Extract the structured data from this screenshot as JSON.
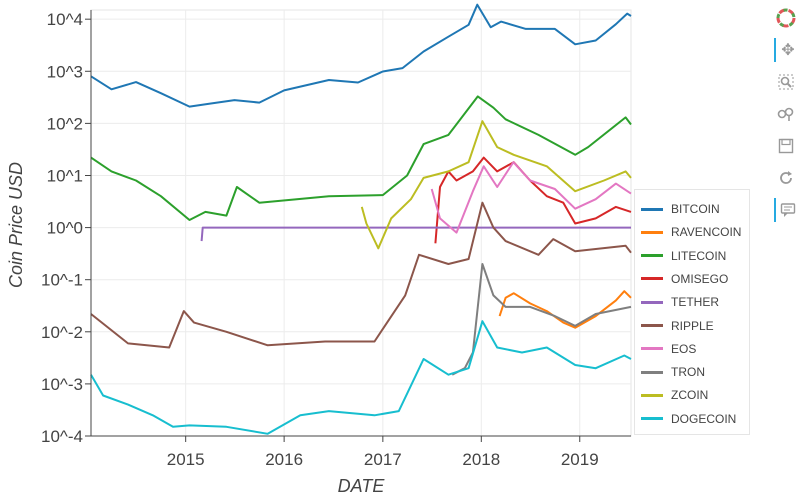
{
  "chart_data": {
    "type": "line",
    "title": "",
    "xlabel": "DATE",
    "ylabel": "Coin Price USD",
    "yscale": "log",
    "xlim": [
      "2014-01-15",
      "2019-07-10"
    ],
    "ylim": [
      0.0001,
      15000
    ],
    "x_ticks": [
      "2015",
      "2016",
      "2017",
      "2018",
      "2019"
    ],
    "y_ticks": [
      "10^-4",
      "10^-3",
      "10^-2",
      "10^-1",
      "10^0",
      "10^1",
      "10^2",
      "10^3",
      "10^4"
    ],
    "grid": true,
    "legend_position": "right",
    "series": [
      {
        "name": "BITCOIN",
        "color": "#1f77b4",
        "points": [
          [
            "2014-01-15",
            800
          ],
          [
            "2014-04-01",
            450
          ],
          [
            "2014-07-01",
            620
          ],
          [
            "2014-10-01",
            380
          ],
          [
            "2015-01-15",
            210
          ],
          [
            "2015-04-01",
            240
          ],
          [
            "2015-07-01",
            280
          ],
          [
            "2015-10-01",
            250
          ],
          [
            "2016-01-01",
            430
          ],
          [
            "2016-06-15",
            680
          ],
          [
            "2016-10-01",
            610
          ],
          [
            "2017-01-01",
            990
          ],
          [
            "2017-03-15",
            1150
          ],
          [
            "2017-06-01",
            2400
          ],
          [
            "2017-09-01",
            4600
          ],
          [
            "2017-11-15",
            7800
          ],
          [
            "2017-12-17",
            19000
          ],
          [
            "2018-02-05",
            7000
          ],
          [
            "2018-03-15",
            9000
          ],
          [
            "2018-06-15",
            6500
          ],
          [
            "2018-10-01",
            6500
          ],
          [
            "2018-12-15",
            3300
          ],
          [
            "2019-03-01",
            3900
          ],
          [
            "2019-05-15",
            8000
          ],
          [
            "2019-06-26",
            12800
          ],
          [
            "2019-07-10",
            11500
          ]
        ]
      },
      {
        "name": "RAVENCOIN",
        "color": "#ff7f0e",
        "points": [
          [
            "2018-03-10",
            0.02
          ],
          [
            "2018-04-01",
            0.045
          ],
          [
            "2018-05-01",
            0.055
          ],
          [
            "2018-07-01",
            0.035
          ],
          [
            "2018-09-01",
            0.025
          ],
          [
            "2018-11-01",
            0.015
          ],
          [
            "2018-12-15",
            0.012
          ],
          [
            "2019-03-01",
            0.02
          ],
          [
            "2019-05-15",
            0.04
          ],
          [
            "2019-06-15",
            0.06
          ],
          [
            "2019-07-10",
            0.045
          ]
        ]
      },
      {
        "name": "LITECOIN",
        "color": "#2ca02c",
        "points": [
          [
            "2014-01-15",
            22
          ],
          [
            "2014-04-01",
            12
          ],
          [
            "2014-07-01",
            8
          ],
          [
            "2014-10-01",
            4
          ],
          [
            "2015-01-15",
            1.4
          ],
          [
            "2015-03-15",
            2
          ],
          [
            "2015-06-01",
            1.7
          ],
          [
            "2015-07-10",
            6
          ],
          [
            "2015-10-01",
            3
          ],
          [
            "2016-06-15",
            4
          ],
          [
            "2017-01-01",
            4.2
          ],
          [
            "2017-04-01",
            10
          ],
          [
            "2017-06-01",
            40
          ],
          [
            "2017-09-01",
            60
          ],
          [
            "2017-12-19",
            330
          ],
          [
            "2018-02-15",
            200
          ],
          [
            "2018-04-01",
            120
          ],
          [
            "2018-08-01",
            60
          ],
          [
            "2018-12-15",
            25
          ],
          [
            "2019-02-01",
            35
          ],
          [
            "2019-06-20",
            130
          ],
          [
            "2019-07-10",
            95
          ]
        ]
      },
      {
        "name": "OMISEGO",
        "color": "#d62728",
        "points": [
          [
            "2017-07-15",
            0.5
          ],
          [
            "2017-08-01",
            6
          ],
          [
            "2017-09-01",
            12
          ],
          [
            "2017-10-01",
            8
          ],
          [
            "2017-12-01",
            12
          ],
          [
            "2018-01-10",
            22
          ],
          [
            "2018-03-01",
            12
          ],
          [
            "2018-05-01",
            18
          ],
          [
            "2018-07-01",
            8
          ],
          [
            "2018-09-01",
            4
          ],
          [
            "2018-11-01",
            3
          ],
          [
            "2018-12-15",
            1.2
          ],
          [
            "2019-03-01",
            1.5
          ],
          [
            "2019-05-15",
            2.5
          ],
          [
            "2019-07-10",
            2
          ]
        ]
      },
      {
        "name": "TETHER",
        "color": "#9467bd",
        "points": [
          [
            "2015-03-01",
            0.55
          ],
          [
            "2015-03-05",
            1.0
          ],
          [
            "2017-01-01",
            1.0
          ],
          [
            "2019-07-10",
            1.0
          ]
        ]
      },
      {
        "name": "RIPPLE",
        "color": "#8c564b",
        "points": [
          [
            "2014-01-15",
            0.022
          ],
          [
            "2014-06-01",
            0.006
          ],
          [
            "2014-11-01",
            0.005
          ],
          [
            "2014-12-25",
            0.025
          ],
          [
            "2015-02-01",
            0.015
          ],
          [
            "2015-06-01",
            0.01
          ],
          [
            "2015-11-01",
            0.0055
          ],
          [
            "2016-06-01",
            0.0065
          ],
          [
            "2016-12-01",
            0.0065
          ],
          [
            "2017-03-25",
            0.05
          ],
          [
            "2017-05-15",
            0.3
          ],
          [
            "2017-09-01",
            0.2
          ],
          [
            "2017-11-15",
            0.25
          ],
          [
            "2018-01-05",
            3.0
          ],
          [
            "2018-02-15",
            1.0
          ],
          [
            "2018-04-01",
            0.55
          ],
          [
            "2018-08-01",
            0.3
          ],
          [
            "2018-09-25",
            0.6
          ],
          [
            "2018-12-15",
            0.35
          ],
          [
            "2019-06-20",
            0.45
          ],
          [
            "2019-07-10",
            0.33
          ]
        ]
      },
      {
        "name": "EOS",
        "color": "#e377c2",
        "points": [
          [
            "2017-07-01",
            5.5
          ],
          [
            "2017-08-01",
            1.5
          ],
          [
            "2017-10-01",
            0.8
          ],
          [
            "2017-12-01",
            5
          ],
          [
            "2018-01-10",
            15
          ],
          [
            "2018-03-01",
            6
          ],
          [
            "2018-04-30",
            18
          ],
          [
            "2018-07-01",
            8
          ],
          [
            "2018-10-01",
            5.5
          ],
          [
            "2018-12-15",
            2.3
          ],
          [
            "2019-03-01",
            3.5
          ],
          [
            "2019-05-15",
            7
          ],
          [
            "2019-07-10",
            4.5
          ]
        ]
      },
      {
        "name": "TRON",
        "color": "#7f7f7f",
        "points": [
          [
            "2017-09-15",
            0.0015
          ],
          [
            "2017-11-01",
            0.002
          ],
          [
            "2017-12-01",
            0.004
          ],
          [
            "2018-01-05",
            0.2
          ],
          [
            "2018-02-15",
            0.05
          ],
          [
            "2018-04-01",
            0.03
          ],
          [
            "2018-07-01",
            0.03
          ],
          [
            "2018-10-01",
            0.02
          ],
          [
            "2018-12-15",
            0.013
          ],
          [
            "2019-03-01",
            0.022
          ],
          [
            "2019-07-10",
            0.03
          ]
        ]
      },
      {
        "name": "ZCOIN",
        "color": "#bcbd22",
        "points": [
          [
            "2016-10-15",
            2.5
          ],
          [
            "2016-11-01",
            1.2
          ],
          [
            "2016-12-15",
            0.4
          ],
          [
            "2017-02-01",
            1.5
          ],
          [
            "2017-04-15",
            3.5
          ],
          [
            "2017-06-01",
            9
          ],
          [
            "2017-09-01",
            12
          ],
          [
            "2017-11-15",
            18
          ],
          [
            "2018-01-05",
            110
          ],
          [
            "2018-03-01",
            35
          ],
          [
            "2018-05-01",
            25
          ],
          [
            "2018-09-01",
            15
          ],
          [
            "2018-12-15",
            5
          ],
          [
            "2019-04-01",
            8
          ],
          [
            "2019-06-20",
            12
          ],
          [
            "2019-07-10",
            9
          ]
        ]
      },
      {
        "name": "DOGECOIN",
        "color": "#17becf",
        "points": [
          [
            "2014-01-15",
            0.0015
          ],
          [
            "2014-03-01",
            0.0006
          ],
          [
            "2014-06-01",
            0.0004
          ],
          [
            "2014-09-01",
            0.00025
          ],
          [
            "2014-11-15",
            0.00015
          ],
          [
            "2015-01-15",
            0.00016
          ],
          [
            "2015-06-01",
            0.00015
          ],
          [
            "2015-11-01",
            0.00011
          ],
          [
            "2016-03-01",
            0.00025
          ],
          [
            "2016-06-15",
            0.0003
          ],
          [
            "2016-12-01",
            0.00025
          ],
          [
            "2017-03-01",
            0.0003
          ],
          [
            "2017-06-01",
            0.003
          ],
          [
            "2017-09-01",
            0.0015
          ],
          [
            "2017-11-15",
            0.002
          ],
          [
            "2018-01-05",
            0.016
          ],
          [
            "2018-03-01",
            0.005
          ],
          [
            "2018-06-01",
            0.004
          ],
          [
            "2018-09-01",
            0.005
          ],
          [
            "2018-12-15",
            0.0023
          ],
          [
            "2019-03-01",
            0.002
          ],
          [
            "2019-06-15",
            0.0035
          ],
          [
            "2019-07-10",
            0.003
          ]
        ]
      }
    ]
  },
  "legend": {
    "items": [
      {
        "label": "BITCOIN",
        "color": "#1f77b4"
      },
      {
        "label": "RAVENCOIN",
        "color": "#ff7f0e"
      },
      {
        "label": "LITECOIN",
        "color": "#2ca02c"
      },
      {
        "label": "OMISEGO",
        "color": "#d62728"
      },
      {
        "label": "TETHER",
        "color": "#9467bd"
      },
      {
        "label": "RIPPLE",
        "color": "#8c564b"
      },
      {
        "label": "EOS",
        "color": "#e377c2"
      },
      {
        "label": "TRON",
        "color": "#7f7f7f"
      },
      {
        "label": "ZCOIN",
        "color": "#bcbd22"
      },
      {
        "label": "DOGECOIN",
        "color": "#17becf"
      }
    ]
  },
  "toolbar": {
    "tools": [
      {
        "name": "bokeh-logo-icon",
        "active": false
      },
      {
        "name": "pan-icon",
        "active": true
      },
      {
        "name": "box-zoom-icon",
        "active": false
      },
      {
        "name": "wheel-zoom-icon",
        "active": false
      },
      {
        "name": "save-icon",
        "active": false
      },
      {
        "name": "reset-icon",
        "active": false
      },
      {
        "name": "hover-icon",
        "active": true
      }
    ]
  }
}
